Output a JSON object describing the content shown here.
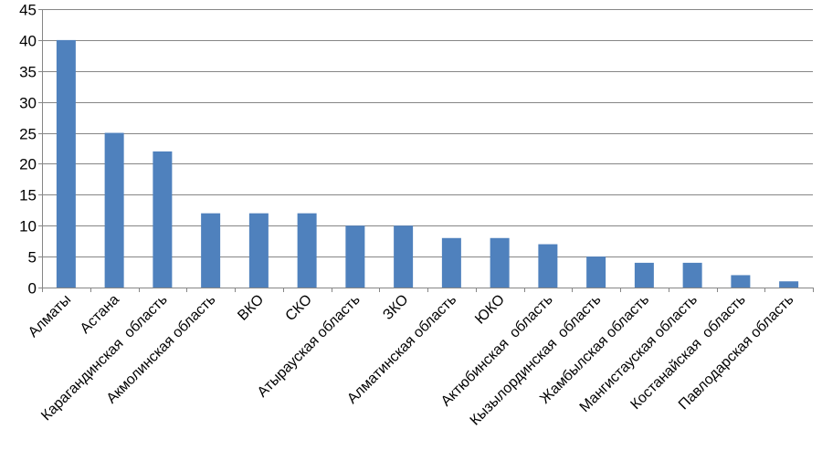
{
  "chart_data": {
    "type": "bar",
    "categories": [
      "Алматы",
      "Астана",
      "Карагандинская  область",
      "Акмолинская область",
      "ВКО",
      "СКО",
      "Атырауская область",
      "ЗКО",
      "Алматинская область",
      "ЮКО",
      "Актюбинская  область",
      "Кызылординская  область",
      "Жамбылская область",
      "Мангистауская область",
      "Костанайская  область",
      "Павлодарская область"
    ],
    "values": [
      40,
      25,
      22,
      12,
      12,
      12,
      10,
      10,
      8,
      8,
      7,
      5,
      4,
      4,
      2,
      1
    ],
    "ylim": [
      0,
      45
    ],
    "yticks": [
      "0",
      "5",
      "10",
      "15",
      "20",
      "25",
      "30",
      "35",
      "40",
      "45"
    ],
    "grid": true,
    "legend": "none",
    "bar_color": "#4f81bd",
    "grid_color": "#868686",
    "axis_color": "#868686"
  }
}
